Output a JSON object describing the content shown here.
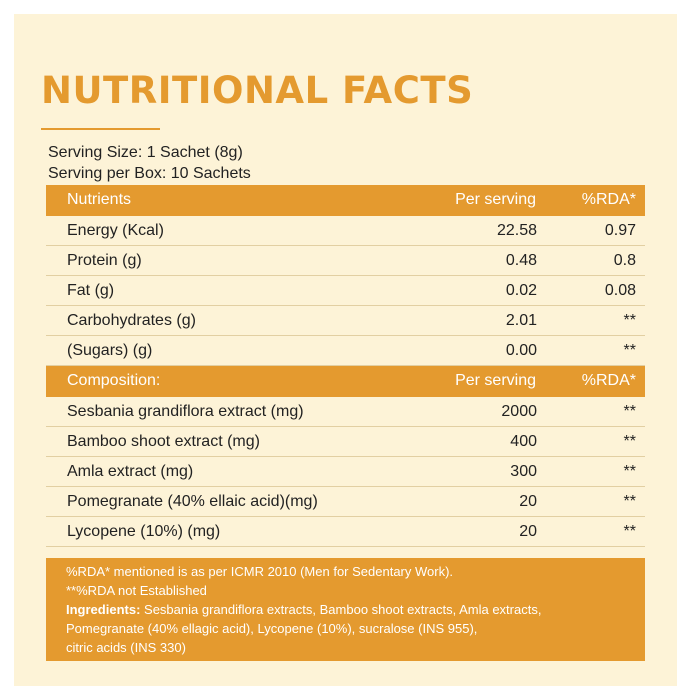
{
  "title": "NUTRITIONAL FACTS",
  "serving": {
    "size": "Serving Size: 1 Sachet (8g)",
    "per_box": "Serving per Box: 10 Sachets"
  },
  "table1": {
    "headers": [
      "Nutrients",
      "Per serving",
      "%RDA*"
    ],
    "rows": [
      [
        "Energy (Kcal)",
        "22.58",
        "0.97"
      ],
      [
        "Protein (g)",
        "0.48",
        "0.8"
      ],
      [
        "Fat (g)",
        "0.02",
        "0.08"
      ],
      [
        "Carbohydrates (g)",
        "2.01",
        "**"
      ],
      [
        "(Sugars) (g)",
        "0.00",
        "**"
      ]
    ]
  },
  "table2": {
    "headers": [
      "Composition:",
      "Per serving",
      "%RDA*"
    ],
    "rows": [
      [
        "Sesbania grandiflora extract (mg)",
        "2000",
        "**"
      ],
      [
        "Bamboo shoot extract (mg)",
        "400",
        "**"
      ],
      [
        "Amla extract (mg)",
        "300",
        "**"
      ],
      [
        "Pomegranate (40% ellaic acid)(mg)",
        "20",
        "**"
      ],
      [
        "Lycopene (10%) (mg)",
        "20",
        "**"
      ]
    ]
  },
  "footnote": {
    "line1": "%RDA* mentioned is as per ICMR 2010 (Men for Sedentary Work).",
    "line2": "**%RDA not Established",
    "ingredients_label": "Ingredients:",
    "ingredients_line1": "Sesbania grandiflora extracts, Bamboo shoot extracts, Amla extracts,",
    "ingredients_line2": "Pomegranate (40% ellagic acid), Lycopene (10%), sucralose (INS 955),",
    "ingredients_line3": "citric acids (INS 330)"
  },
  "colors": {
    "accent": "#e49a2f",
    "panel_background": "#fdf3d7",
    "row_divider": "#e2cfa2"
  }
}
